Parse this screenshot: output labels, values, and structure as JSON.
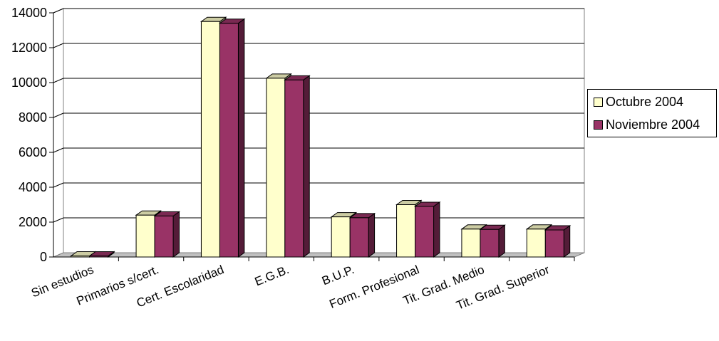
{
  "chart_data": {
    "type": "bar",
    "categories": [
      "Sin estudios",
      "Primarios s/cert.",
      "Cert. Escolaridad",
      "E.G.B.",
      "B.U.P.",
      "Form. Profesional",
      "Tit. Grad. Medio",
      "Tit. Grad. Superior"
    ],
    "series": [
      {
        "name": "Octubre 2004",
        "color": "#ffffcc",
        "values": [
          60,
          2400,
          13500,
          10250,
          2300,
          3000,
          1600,
          1600
        ]
      },
      {
        "name": "Noviembre 2004",
        "color": "#993366",
        "values": [
          60,
          2350,
          13400,
          10150,
          2250,
          2900,
          1580,
          1550
        ]
      }
    ],
    "y_ticks": [
      "0",
      "2000",
      "4000",
      "6000",
      "8000",
      "10000",
      "12000",
      "14000"
    ],
    "ylim": [
      0,
      14000
    ],
    "grid": true,
    "legend_position": "right",
    "title": "",
    "xlabel": "",
    "ylabel": ""
  }
}
